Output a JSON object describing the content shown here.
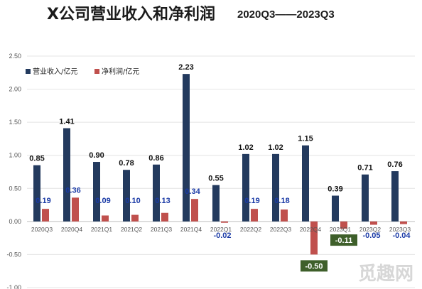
{
  "title": {
    "main": "X公司营业收入和净利润",
    "sub": "2020Q3——2023Q3"
  },
  "watermark": "觅趣网",
  "colors": {
    "revenue": "#233a5e",
    "net_profit": "#c0504d",
    "negative_label_box": "#3e5f2a"
  },
  "chart_data": {
    "type": "bar",
    "categories": [
      "2020Q3",
      "2020Q4",
      "2021Q1",
      "2021Q2",
      "2021Q3",
      "2021Q4",
      "2022Q1",
      "2022Q2",
      "2022Q3",
      "2022Q4",
      "2023Q1",
      "2023Q2",
      "2023Q3"
    ],
    "series": [
      {
        "name": "营业收入/亿元",
        "values": [
          0.85,
          1.41,
          0.9,
          0.78,
          0.86,
          2.23,
          0.55,
          1.02,
          1.02,
          1.15,
          0.39,
          0.71,
          0.76
        ]
      },
      {
        "name": "净利润/亿元",
        "values": [
          0.19,
          0.36,
          0.09,
          0.1,
          0.13,
          0.34,
          -0.02,
          0.19,
          0.18,
          -0.5,
          -0.11,
          -0.05,
          -0.04
        ]
      }
    ],
    "revenue_labels": [
      "0.85",
      "1.41",
      "0.90",
      "0.78",
      "0.86",
      "2.23",
      "0.55",
      "1.02",
      "1.02",
      "1.15",
      "0.39",
      "0.71",
      "0.76"
    ],
    "net_profit_labels": [
      "0.19",
      "0.36",
      "0.09",
      "0.10",
      "0.13",
      "0.34",
      "-0.02",
      "0.19",
      "0.18",
      "-0.50",
      "-0.11",
      "-0.05",
      "-0.04"
    ],
    "yticks": [
      "2.50",
      "2.00",
      "1.50",
      "1.00",
      "0.50",
      "0.00",
      "-0.50",
      "-1.00"
    ],
    "ylim": [
      -1.0,
      2.5
    ],
    "grid": true,
    "legend_position": "top-left"
  }
}
